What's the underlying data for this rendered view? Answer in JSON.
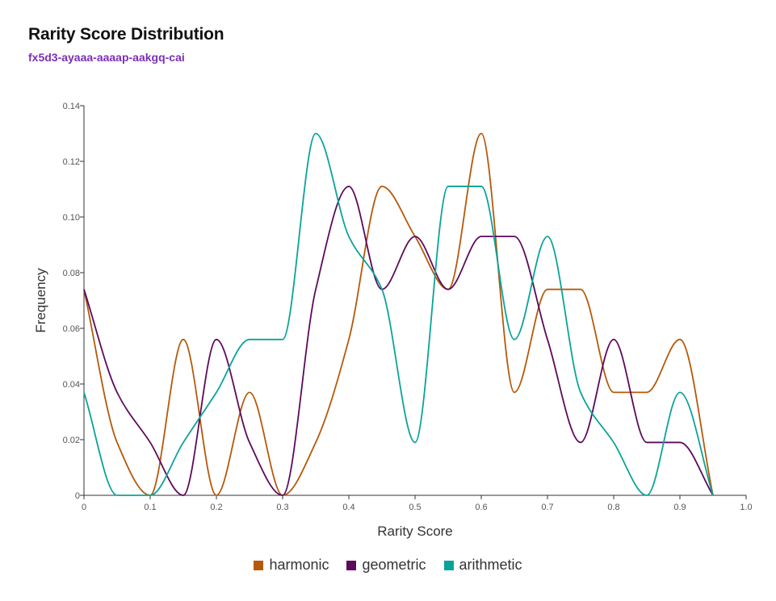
{
  "header": {
    "title": "Rarity Score Distribution",
    "subtitle": "fx5d3-ayaaa-aaaap-aakgq-cai"
  },
  "chart_data": {
    "type": "line",
    "title": "Rarity Score Distribution",
    "subtitle": "fx5d3-ayaaa-aaaap-aakgq-cai",
    "xlabel": "Rarity Score",
    "ylabel": "Frequency",
    "xlim": [
      0,
      1.0
    ],
    "ylim": [
      0,
      0.14
    ],
    "x_ticks": [
      "0",
      "0.1",
      "0.2",
      "0.3",
      "0.4",
      "0.5",
      "0.6",
      "0.7",
      "0.8",
      "0.9",
      "1.0"
    ],
    "y_ticks": [
      "0",
      "0.02",
      "0.04",
      "0.06",
      "0.08",
      "0.10",
      "0.12",
      "0.14"
    ],
    "grid": false,
    "legend_position": "bottom-center",
    "x": [
      0,
      0.05,
      0.1,
      0.15,
      0.2,
      0.25,
      0.3,
      0.35,
      0.4,
      0.45,
      0.5,
      0.55,
      0.6,
      0.65,
      0.7,
      0.75,
      0.8,
      0.85,
      0.9,
      0.95
    ],
    "series": [
      {
        "name": "harmonic",
        "color": "#b5590a",
        "values": [
          0.074,
          0.019,
          0,
          0.056,
          0,
          0.037,
          0,
          0.019,
          0.056,
          0.111,
          0.093,
          0.074,
          0.13,
          0.037,
          0.074,
          0.074,
          0.037,
          0.037,
          0.056,
          0
        ]
      },
      {
        "name": "geometric",
        "color": "#5c0a5c",
        "values": [
          0.074,
          0.037,
          0.019,
          0,
          0.056,
          0.019,
          0,
          0.074,
          0.111,
          0.074,
          0.093,
          0.074,
          0.093,
          0.093,
          0.056,
          0.019,
          0.056,
          0.019,
          0.019,
          0
        ]
      },
      {
        "name": "arithmetic",
        "color": "#0aa39a",
        "values": [
          0.037,
          0,
          0,
          0.019,
          0.037,
          0.056,
          0.056,
          0.13,
          0.093,
          0.074,
          0.019,
          0.111,
          0.111,
          0.056,
          0.093,
          0.037,
          0.019,
          0,
          0.037,
          0
        ]
      }
    ]
  }
}
